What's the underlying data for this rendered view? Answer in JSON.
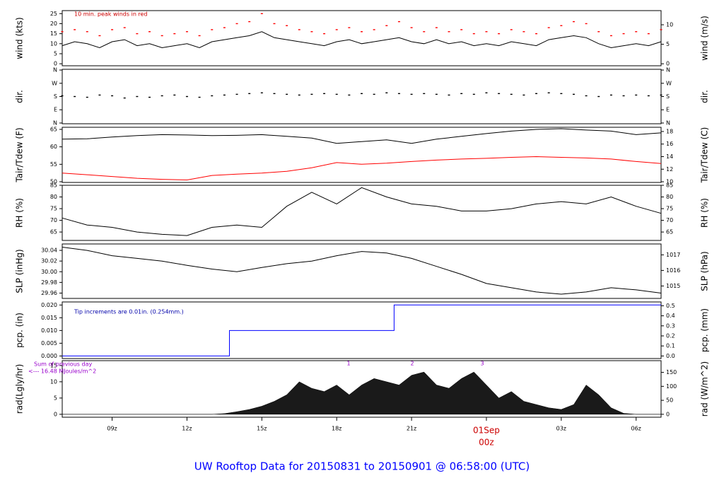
{
  "title": "UW Rooftop Data for 20150831  to  20150901 @ 06:58:00  (UTC)",
  "chart_data": [
    {
      "type": "line",
      "ylabel": "wind (kts)",
      "y2label": "wind (m/s)",
      "annotations": [
        "10 min. peak winds in red"
      ],
      "xlim": [
        7,
        31
      ],
      "x": [
        7,
        7.5,
        8,
        8.5,
        9,
        9.5,
        10,
        10.5,
        11,
        11.5,
        12,
        12.5,
        13,
        13.5,
        14,
        14.5,
        15,
        15.5,
        16,
        16.5,
        17,
        17.5,
        18,
        18.5,
        19,
        19.5,
        20,
        20.5,
        21,
        21.5,
        22,
        22.5,
        23,
        23.5,
        24,
        24.5,
        25,
        25.5,
        26,
        26.5,
        27,
        27.5,
        28,
        28.5,
        29,
        29.5,
        30,
        30.5,
        31
      ],
      "series": [
        {
          "color": "#000000",
          "marker": "line",
          "values": [
            9,
            11,
            10,
            8,
            11,
            12,
            9,
            10,
            8,
            9,
            10,
            8,
            11,
            12,
            13,
            14,
            16,
            13,
            12,
            11,
            10,
            9,
            11,
            12,
            10,
            11,
            12,
            13,
            11,
            10,
            12,
            10,
            11,
            9,
            10,
            9,
            11,
            10,
            9,
            12,
            13,
            14,
            13,
            10,
            8,
            9,
            10,
            9,
            11
          ]
        },
        {
          "color": "#ff0000",
          "marker": "point",
          "values": [
            16,
            17,
            16,
            14,
            17,
            18,
            15,
            16,
            14,
            15,
            16,
            14,
            17,
            18,
            20,
            21,
            25,
            20,
            19,
            17,
            16,
            15,
            17,
            18,
            16,
            17,
            19,
            21,
            18,
            16,
            18,
            16,
            17,
            15,
            16,
            15,
            17,
            16,
            15,
            18,
            19,
            21,
            20,
            16,
            14,
            15,
            16,
            15,
            17
          ]
        }
      ],
      "ylim": [
        -1,
        26.5
      ],
      "yticks": [
        0,
        5,
        10,
        15,
        20,
        25
      ],
      "y2lim": [
        -0.51,
        13.63
      ],
      "y2ticks": [
        0,
        5,
        10
      ]
    },
    {
      "type": "scatter",
      "ylabel": "dir.",
      "y2label": "dir.",
      "xlim": [
        7,
        31
      ],
      "x": [
        7,
        7.5,
        8,
        8.5,
        9,
        9.5,
        10,
        10.5,
        11,
        11.5,
        12,
        12.5,
        13,
        13.5,
        14,
        14.5,
        15,
        15.5,
        16,
        16.5,
        17,
        17.5,
        18,
        18.5,
        19,
        19.5,
        20,
        20.5,
        21,
        21.5,
        22,
        22.5,
        23,
        23.5,
        24,
        24.5,
        25,
        25.5,
        26,
        26.5,
        27,
        27.5,
        28,
        28.5,
        29,
        29.5,
        30,
        30.5,
        31
      ],
      "series": [
        {
          "color": "#000000",
          "marker": "point",
          "values": [
            185,
            180,
            175,
            190,
            185,
            170,
            180,
            175,
            185,
            190,
            180,
            175,
            185,
            190,
            195,
            200,
            205,
            200,
            195,
            190,
            195,
            200,
            195,
            190,
            200,
            195,
            205,
            200,
            195,
            200,
            195,
            190,
            200,
            195,
            205,
            200,
            195,
            190,
            200,
            205,
            200,
            195,
            185,
            180,
            190,
            185,
            190,
            185,
            190
          ]
        }
      ],
      "ylim": [
        -5,
        365
      ],
      "yticks": [
        {
          "value": 0,
          "label": "N"
        },
        {
          "value": 90,
          "label": "E"
        },
        {
          "value": 180,
          "label": "S"
        },
        {
          "value": 270,
          "label": "W"
        },
        {
          "value": 360,
          "label": "N"
        }
      ],
      "y2lim": [
        -5,
        365
      ],
      "y2ticks": [
        {
          "value": 0,
          "label": "N"
        },
        {
          "value": 90,
          "label": "E"
        },
        {
          "value": 180,
          "label": "S"
        },
        {
          "value": 270,
          "label": "W"
        },
        {
          "value": 360,
          "label": "N"
        }
      ]
    },
    {
      "type": "line",
      "ylabel": "Tair/Tdew (F)",
      "y2label": "Tair/Tdew (C)",
      "xlim": [
        7,
        31
      ],
      "x": [
        7,
        8,
        9,
        10,
        11,
        12,
        13,
        14,
        15,
        16,
        17,
        18,
        19,
        20,
        21,
        22,
        23,
        24,
        25,
        26,
        27,
        28,
        29,
        30,
        31
      ],
      "series": [
        {
          "color": "#000000",
          "marker": "line",
          "values": [
            62.2,
            62.3,
            62.8,
            63.2,
            63.5,
            63.4,
            63.2,
            63.3,
            63.5,
            63.0,
            62.5,
            61.0,
            61.5,
            62.0,
            61.0,
            62.2,
            63.0,
            63.8,
            64.5,
            65.0,
            65.2,
            64.8,
            64.5,
            63.5,
            64.0
          ]
        },
        {
          "color": "#ff0000",
          "marker": "line",
          "values": [
            52.5,
            52.0,
            51.5,
            51.0,
            50.7,
            50.5,
            51.8,
            52.2,
            52.5,
            53.0,
            54.0,
            55.5,
            55.0,
            55.3,
            55.8,
            56.2,
            56.5,
            56.7,
            57.0,
            57.2,
            57.0,
            56.8,
            56.5,
            55.8,
            55.2
          ]
        }
      ],
      "ylim": [
        49.8,
        65.6
      ],
      "yticks": [
        50,
        55,
        60,
        65
      ],
      "y2lim": [
        9.89,
        18.67
      ],
      "y2ticks": [
        10,
        12,
        14,
        16,
        18
      ]
    },
    {
      "type": "line",
      "ylabel": "RH (%)",
      "y2label": "RH (%)",
      "xlim": [
        7,
        31
      ],
      "x": [
        7,
        8,
        9,
        10,
        11,
        12,
        13,
        14,
        15,
        16,
        17,
        18,
        19,
        20,
        21,
        22,
        23,
        24,
        25,
        26,
        27,
        28,
        29,
        30,
        31
      ],
      "series": [
        {
          "color": "#000000",
          "marker": "line",
          "values": [
            71,
            68,
            67,
            65,
            64,
            63.5,
            67,
            68,
            67,
            76,
            82,
            77,
            84,
            80,
            77,
            76,
            74,
            74,
            75,
            77,
            78,
            77,
            80,
            76,
            73
          ]
        }
      ],
      "ylim": [
        61.4,
        85
      ],
      "yticks": [
        65,
        70,
        75,
        80,
        85
      ],
      "y2lim": [
        61.4,
        85
      ],
      "y2ticks": [
        65,
        70,
        75,
        80,
        85
      ]
    },
    {
      "type": "line",
      "ylabel": "SLP (inHg)",
      "y2label": "SLP (hPa)",
      "xlim": [
        7,
        31
      ],
      "x": [
        7,
        8,
        9,
        10,
        11,
        12,
        13,
        14,
        15,
        16,
        17,
        18,
        19,
        20,
        21,
        22,
        23,
        24,
        25,
        26,
        27,
        28,
        29,
        30,
        31
      ],
      "series": [
        {
          "color": "#000000",
          "marker": "line",
          "values": [
            30.046,
            30.04,
            30.03,
            30.025,
            30.02,
            30.012,
            30.005,
            30.0,
            30.008,
            30.015,
            30.02,
            30.03,
            30.038,
            30.035,
            30.025,
            30.01,
            29.995,
            29.978,
            29.97,
            29.962,
            29.958,
            29.962,
            29.97,
            29.966,
            29.96
          ]
        }
      ],
      "ylim": [
        29.95,
        30.052
      ],
      "yticks": [
        29.96,
        29.98,
        {
          "value": 30,
          "label": "30.00"
        },
        30.02,
        30.04
      ],
      "y2lim": [
        1014.2,
        1017.7
      ],
      "y2ticks": [
        1015,
        1016,
        1017
      ]
    },
    {
      "type": "line",
      "ylabel": "pcp. (in)",
      "y2label": "pcp. (mm)",
      "annotations": [
        "Tip increments are 0.01in. (0.254mm.)"
      ],
      "xlim": [
        7,
        31
      ],
      "x": [
        7,
        13.7,
        13.7,
        20.3,
        20.3,
        31
      ],
      "series": [
        {
          "color": "#0000ff",
          "marker": "line",
          "values": [
            0,
            0,
            0.01,
            0.01,
            0.02,
            0.02
          ]
        }
      ],
      "ylim": [
        -0.001,
        0.0212
      ],
      "yticks": [
        {
          "value": 0,
          "label": "0.000"
        },
        {
          "value": 0.005,
          "label": "0.005"
        },
        {
          "value": 0.01,
          "label": "0.010"
        },
        {
          "value": 0.015,
          "label": "0.015"
        },
        {
          "value": 0.02,
          "label": "0.020"
        }
      ],
      "y2lim": [
        -0.0254,
        0.538
      ],
      "y2ticks": [
        {
          "value": 0,
          "label": "0.0"
        },
        0.1,
        0.2,
        0.3,
        0.4,
        0.5
      ]
    },
    {
      "type": "area",
      "ylabel": "rad(Lgly/hr)",
      "y2label": "rad (W/m^2)",
      "annotations": [
        "Sum of previous day",
        "<--- 16.48 MJoules/m^2"
      ],
      "markers": [
        "1",
        "2",
        "3"
      ],
      "xlim": [
        7,
        31
      ],
      "x": [
        7,
        7.5,
        8,
        8.5,
        9,
        9.5,
        10,
        10.5,
        11,
        11.5,
        12,
        12.5,
        13,
        13.5,
        14,
        14.5,
        15,
        15.5,
        16,
        16.5,
        17,
        17.5,
        18,
        18.5,
        19,
        19.5,
        20,
        20.5,
        21,
        21.5,
        22,
        22.5,
        23,
        23.5,
        24,
        24.5,
        25,
        25.5,
        26,
        26.5,
        27,
        27.5,
        28,
        28.5,
        29,
        29.5,
        30,
        30.5,
        31
      ],
      "series": [
        {
          "color": "#1a1a1a",
          "marker": "area",
          "values": [
            0,
            0,
            0,
            0,
            0,
            0,
            0,
            0,
            0,
            0,
            0,
            0,
            0,
            0.2,
            0.8,
            1.5,
            2.5,
            4,
            6,
            10,
            8,
            7,
            9,
            6,
            9,
            11,
            10,
            9,
            12,
            13,
            9,
            8,
            11,
            13,
            9,
            5,
            7,
            4,
            3,
            2,
            1.5,
            3,
            9,
            6,
            2,
            0.3,
            0,
            0,
            0
          ]
        }
      ],
      "ylim": [
        -0.9,
        16.5
      ],
      "yticks": [
        0,
        5,
        10,
        15
      ],
      "y2lim": [
        -10.5,
        191.9
      ],
      "y2ticks": [
        0,
        50,
        100,
        150
      ],
      "date_label": "01Sep",
      "xticks": [
        {
          "value": 9,
          "label": "09z"
        },
        {
          "value": 12,
          "label": "12z"
        },
        {
          "value": 15,
          "label": "15z"
        },
        {
          "value": 18,
          "label": "18z"
        },
        {
          "value": 21,
          "label": "21z"
        },
        {
          "value": 24,
          "label": "00z"
        },
        {
          "value": 27,
          "label": "03z"
        },
        {
          "value": 30,
          "label": "06z"
        }
      ]
    }
  ]
}
